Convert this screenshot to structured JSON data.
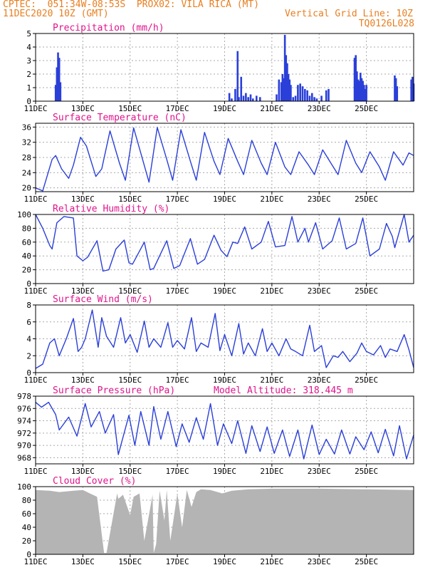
{
  "header": {
    "line1_left": "CPTEC:  051:34W-08:53S  PROX02: VILA RICA (MT)",
    "line2_left": "11DEC2020 10Z (GMT)",
    "line2_right": "Vertical Grid Line: 10Z",
    "line3_right": "TQ0126L028",
    "model_altitude": "Model Altitude: 318.445 m"
  },
  "colors": {
    "header": "#e87e20",
    "title": "#e0148c",
    "series": "#2a3fd8",
    "cloud": "#b4b4b4",
    "grid": "#aaaaaa"
  },
  "x_ticks": [
    "11DEC",
    "13DEC",
    "15DEC",
    "17DEC",
    "19DEC",
    "21DEC",
    "23DEC",
    "25DEC"
  ],
  "chart_data": [
    {
      "type": "bar",
      "title": "Precipitation (mm/h)",
      "ylim": [
        0,
        5
      ],
      "yticks": [
        "0",
        "1",
        "2",
        "3",
        "4",
        "5"
      ],
      "x_days": [
        0.85,
        0.9,
        0.95,
        1.0,
        1.05,
        8.2,
        8.3,
        8.45,
        8.55,
        8.6,
        8.7,
        8.8,
        8.9,
        9.0,
        9.1,
        9.2,
        9.35,
        9.5,
        10.2,
        10.3,
        10.4,
        10.45,
        10.5,
        10.55,
        10.6,
        10.65,
        10.7,
        10.75,
        10.8,
        10.9,
        11.0,
        11.1,
        11.2,
        11.3,
        11.4,
        11.5,
        11.6,
        11.7,
        11.8,
        11.9,
        12.1,
        12.3,
        12.4,
        13.5,
        13.55,
        13.6,
        13.65,
        13.7,
        13.75,
        13.8,
        13.85,
        13.9,
        13.95,
        14.0,
        15.2,
        15.25,
        15.3,
        15.9,
        15.95,
        16.0
      ],
      "values": [
        1.2,
        2.5,
        3.6,
        3.2,
        1.4,
        0.6,
        0.2,
        0.9,
        3.7,
        0.3,
        1.8,
        0.4,
        0.6,
        0.3,
        0.5,
        0.2,
        0.4,
        0.3,
        0.5,
        1.6,
        1.4,
        2.0,
        1.7,
        4.9,
        3.4,
        2.8,
        2.0,
        1.6,
        1.2,
        0.3,
        0.4,
        1.2,
        1.3,
        1.1,
        0.9,
        0.8,
        0.4,
        0.6,
        0.3,
        0.2,
        0.4,
        0.8,
        0.9,
        3.2,
        3.4,
        2.2,
        1.6,
        1.5,
        2.1,
        1.7,
        1.5,
        1.2,
        0.9,
        1.2,
        1.9,
        1.7,
        1.1,
        1.6,
        1.8,
        1.3
      ]
    },
    {
      "type": "line",
      "title": "Surface Temperature (nC)",
      "ylim": [
        19,
        37
      ],
      "yticks": [
        "20",
        "24",
        "28",
        "32",
        "36"
      ],
      "x_days": [
        0.0,
        0.3,
        0.7,
        0.85,
        1.1,
        1.4,
        1.6,
        1.9,
        2.15,
        2.55,
        2.8,
        3.15,
        3.55,
        3.8,
        4.15,
        4.55,
        4.8,
        5.15,
        5.55,
        5.8,
        6.15,
        6.55,
        6.8,
        7.15,
        7.55,
        7.8,
        8.15,
        8.55,
        8.8,
        9.15,
        9.55,
        9.8,
        10.15,
        10.55,
        10.8,
        11.15,
        11.55,
        11.8,
        12.15,
        12.55,
        12.8,
        13.15,
        13.55,
        13.8,
        14.15,
        14.55,
        14.8,
        15.15,
        15.55,
        15.8,
        16.0
      ],
      "values": [
        20,
        19.2,
        27.5,
        28.5,
        25,
        22.5,
        26,
        33.3,
        31,
        23,
        25,
        35,
        26.5,
        22,
        35.8,
        27,
        21.5,
        35.9,
        27.5,
        22,
        35.3,
        27,
        22,
        34.6,
        27,
        23.5,
        33,
        27,
        23.5,
        32.5,
        26.5,
        23.5,
        32,
        25.5,
        23.5,
        29.5,
        26,
        23.5,
        30,
        26,
        23.5,
        32.5,
        26.5,
        24,
        29.5,
        25.5,
        22,
        29.5,
        26,
        29.2,
        28.5
      ]
    },
    {
      "type": "line",
      "title": "Relative Humidity (%)",
      "ylim": [
        0,
        100
      ],
      "yticks": [
        "0",
        "20",
        "40",
        "60",
        "80",
        "100"
      ],
      "x_days": [
        0.0,
        0.3,
        0.6,
        0.7,
        0.9,
        1.2,
        1.6,
        1.75,
        2.0,
        2.2,
        2.6,
        2.85,
        3.1,
        3.4,
        3.75,
        3.95,
        4.1,
        4.6,
        4.85,
        5.0,
        5.55,
        5.85,
        6.1,
        6.55,
        6.85,
        7.15,
        7.55,
        7.85,
        8.1,
        8.35,
        8.55,
        8.85,
        9.15,
        9.55,
        9.85,
        10.15,
        10.55,
        10.85,
        11.1,
        11.4,
        11.55,
        11.85,
        12.15,
        12.55,
        12.85,
        13.15,
        13.55,
        13.85,
        14.15,
        14.55,
        14.85,
        15.1,
        15.2,
        15.6,
        15.8,
        16.0
      ],
      "values": [
        100,
        80,
        55,
        50,
        88,
        97,
        95,
        40,
        33,
        38,
        62,
        18,
        20,
        50,
        63,
        30,
        28,
        60,
        20,
        22,
        62,
        22,
        26,
        65,
        28,
        35,
        70,
        48,
        39,
        60,
        58,
        82,
        50,
        60,
        90,
        53,
        55,
        97,
        60,
        80,
        60,
        88,
        50,
        62,
        95,
        50,
        58,
        95,
        40,
        50,
        87,
        68,
        52,
        100,
        60,
        70
      ]
    },
    {
      "type": "line",
      "title": "Surface Wind (m/s)",
      "ylim": [
        0,
        8
      ],
      "yticks": [
        "0",
        "2",
        "4",
        "6",
        "8"
      ],
      "x_days": [
        0.0,
        0.3,
        0.6,
        0.8,
        1.0,
        1.3,
        1.6,
        1.8,
        1.95,
        2.1,
        2.4,
        2.65,
        2.8,
        3.0,
        3.3,
        3.6,
        3.8,
        4.0,
        4.3,
        4.6,
        4.8,
        5.0,
        5.3,
        5.6,
        5.8,
        6.0,
        6.3,
        6.6,
        6.8,
        7.0,
        7.3,
        7.6,
        7.8,
        8.0,
        8.3,
        8.6,
        8.8,
        9.0,
        9.3,
        9.6,
        9.8,
        10.0,
        10.3,
        10.6,
        10.8,
        11.0,
        11.3,
        11.6,
        11.8,
        12.1,
        12.3,
        12.6,
        12.8,
        13.0,
        13.3,
        13.6,
        13.8,
        14.0,
        14.3,
        14.6,
        14.8,
        15.0,
        15.3,
        15.6,
        15.8,
        16.0
      ],
      "values": [
        0.5,
        1,
        3.5,
        4,
        2,
        4,
        6.4,
        2.5,
        3,
        4,
        7.4,
        3,
        6.5,
        4.3,
        3,
        6.5,
        3.5,
        4.5,
        2.4,
        6.1,
        3,
        4,
        3,
        5.9,
        3,
        3.8,
        2.8,
        6.5,
        2.5,
        3.5,
        3,
        7,
        2.6,
        4.5,
        2,
        5.8,
        2.2,
        3.5,
        2,
        5.2,
        2.5,
        3.5,
        2,
        4,
        2.8,
        2.5,
        2,
        5.6,
        2.5,
        3.2,
        0.6,
        2,
        1.8,
        2.5,
        1.3,
        2.3,
        3.5,
        2.5,
        2.1,
        3.2,
        1.8,
        2.8,
        2.5,
        4.5,
        2.7,
        0.6
      ]
    },
    {
      "type": "line",
      "title": "Surface Pressure (hPa)",
      "ylim": [
        967,
        978
      ],
      "yticks": [
        "968",
        "970",
        "972",
        "974",
        "976",
        "978"
      ],
      "x_days": [
        0.0,
        0.25,
        0.55,
        0.85,
        1.0,
        1.4,
        1.75,
        2.1,
        2.35,
        2.7,
        2.95,
        3.3,
        3.5,
        3.95,
        4.2,
        4.45,
        4.8,
        5.0,
        5.3,
        5.6,
        5.95,
        6.2,
        6.5,
        6.8,
        7.1,
        7.4,
        7.7,
        7.95,
        8.3,
        8.55,
        8.9,
        9.15,
        9.5,
        9.8,
        10.1,
        10.45,
        10.75,
        11.1,
        11.35,
        11.7,
        12.0,
        12.3,
        12.65,
        12.95,
        13.3,
        13.55,
        13.9,
        14.2,
        14.5,
        14.8,
        15.15,
        15.4,
        15.7,
        16.0
      ],
      "values": [
        977,
        976.2,
        977,
        975,
        972.5,
        974.6,
        971.5,
        976.8,
        973,
        975.5,
        972,
        975,
        968.5,
        974.9,
        970,
        975.5,
        970,
        976.3,
        971,
        975.5,
        969.8,
        973.5,
        970.5,
        974.5,
        971,
        976.8,
        970,
        973.5,
        970.3,
        974,
        968.7,
        973.2,
        969,
        973,
        968.7,
        972.5,
        968.2,
        972.5,
        967.8,
        973.3,
        968.5,
        971,
        968.6,
        972.5,
        968.6,
        971.4,
        969.3,
        972.2,
        968.8,
        972.6,
        968.3,
        973.2,
        967.8,
        971.7
      ]
    },
    {
      "type": "area",
      "title": "Cloud Cover (%)",
      "ylim": [
        0,
        100
      ],
      "yticks": [
        "0",
        "20",
        "40",
        "60",
        "80",
        "100"
      ],
      "x_days": [
        0.0,
        0.6,
        1.0,
        1.6,
        2.0,
        2.6,
        2.9,
        3.0,
        3.45,
        3.5,
        3.7,
        4.0,
        4.15,
        4.4,
        4.6,
        4.95,
        5.0,
        5.1,
        5.25,
        5.45,
        5.55,
        5.7,
        6.0,
        6.2,
        6.4,
        6.6,
        6.8,
        7.0,
        7.4,
        7.9,
        8.3,
        9.0,
        10.0,
        12.0,
        14.0,
        16.0
      ],
      "values": [
        95,
        94,
        92,
        94,
        95,
        85,
        2,
        2,
        90,
        82,
        88,
        58,
        85,
        90,
        20,
        88,
        2,
        15,
        94,
        50,
        95,
        20,
        90,
        40,
        95,
        70,
        92,
        96,
        95,
        90,
        94,
        96,
        97,
        97,
        96,
        95
      ]
    }
  ]
}
